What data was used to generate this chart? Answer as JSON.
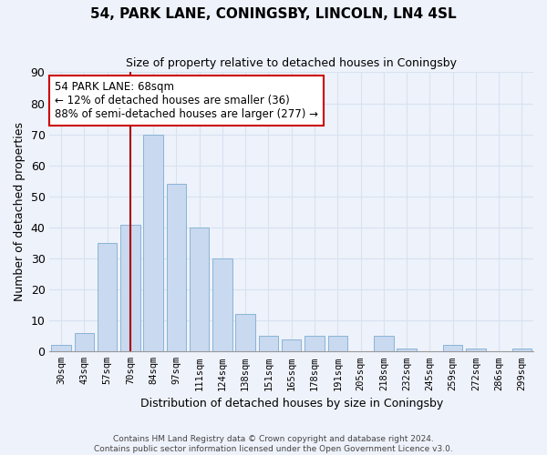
{
  "title": "54, PARK LANE, CONINGSBY, LINCOLN, LN4 4SL",
  "subtitle": "Size of property relative to detached houses in Coningsby",
  "xlabel": "Distribution of detached houses by size in Coningsby",
  "ylabel": "Number of detached properties",
  "bar_labels": [
    "30sqm",
    "43sqm",
    "57sqm",
    "70sqm",
    "84sqm",
    "97sqm",
    "111sqm",
    "124sqm",
    "138sqm",
    "151sqm",
    "165sqm",
    "178sqm",
    "191sqm",
    "205sqm",
    "218sqm",
    "232sqm",
    "245sqm",
    "259sqm",
    "272sqm",
    "286sqm",
    "299sqm"
  ],
  "bar_values": [
    2,
    6,
    35,
    41,
    70,
    54,
    40,
    30,
    12,
    5,
    4,
    5,
    5,
    0,
    5,
    1,
    0,
    2,
    1,
    0,
    1
  ],
  "bar_color": "#c8d9f0",
  "bar_edge_color": "#8ab4d4",
  "vline_x": 3,
  "vline_color": "#aa0000",
  "ylim": [
    0,
    90
  ],
  "yticks": [
    0,
    10,
    20,
    30,
    40,
    50,
    60,
    70,
    80,
    90
  ],
  "annotation_line1": "54 PARK LANE: 68sqm",
  "annotation_line2": "← 12% of detached houses are smaller (36)",
  "annotation_line3": "88% of semi-detached houses are larger (277) →",
  "annotation_box_color": "#ffffff",
  "annotation_box_edge": "#cc0000",
  "background_color": "#eef2fb",
  "grid_color": "#d8e2f0",
  "footer_line1": "Contains HM Land Registry data © Crown copyright and database right 2024.",
  "footer_line2": "Contains public sector information licensed under the Open Government Licence v3.0."
}
